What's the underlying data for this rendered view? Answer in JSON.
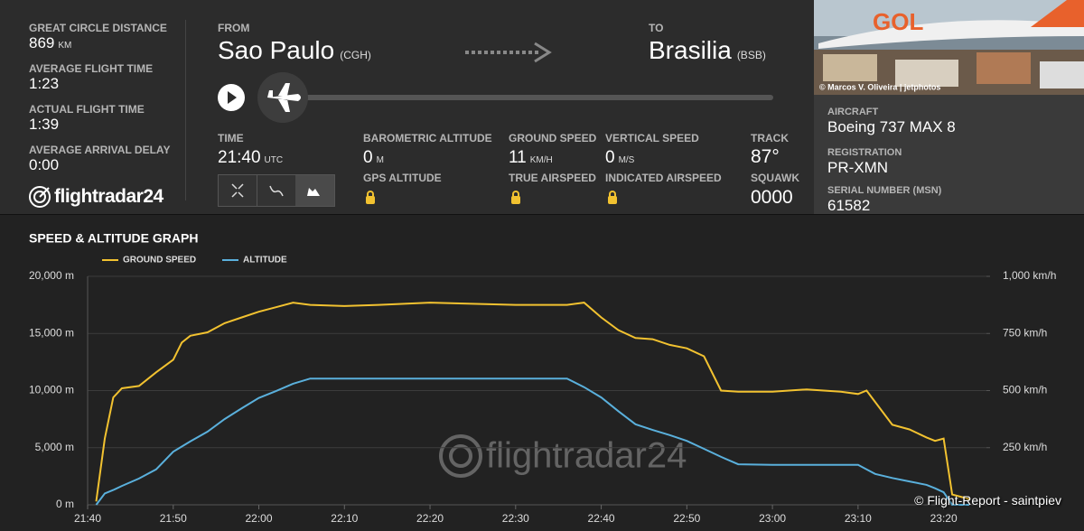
{
  "stats": [
    {
      "label": "GREAT CIRCLE DISTANCE",
      "value": "869",
      "unit": "KM"
    },
    {
      "label": "AVERAGE FLIGHT TIME",
      "value": "1:23"
    },
    {
      "label": "ACTUAL FLIGHT TIME",
      "value": "1:39"
    },
    {
      "label": "AVERAGE ARRIVAL DELAY",
      "value": "0:00"
    }
  ],
  "logo": "flightradar24",
  "route": {
    "from_label": "FROM",
    "from_city": "Sao Paulo",
    "from_code": "(CGH)",
    "to_label": "TO",
    "to_city": "Brasilia",
    "to_code": "(BSB)"
  },
  "flight_info": [
    {
      "label": "TIME",
      "value": "21:40",
      "unit": "UTC"
    },
    {
      "label": "BAROMETRIC ALTITUDE",
      "value": "0",
      "unit": "M"
    },
    {
      "label": "GROUND SPEED",
      "value": "11",
      "unit": "KM/H"
    },
    {
      "label": "VERTICAL SPEED",
      "value": "0",
      "unit": "M/S"
    },
    {
      "label": "TRACK",
      "value": "87°"
    }
  ],
  "locked_info": [
    "GPS ALTITUDE",
    "TRUE AIRSPEED",
    "INDICATED AIRSPEED"
  ],
  "squawk": {
    "label": "SQUAWK",
    "value": "0000"
  },
  "photo": {
    "livery": "GOL",
    "credit": "© Marcos V. Oliveira | jetphotos"
  },
  "aircraft": [
    {
      "label": "AIRCRAFT",
      "value": "Boeing 737 MAX 8"
    },
    {
      "label": "REGISTRATION",
      "value": "PR-XMN"
    },
    {
      "label": "SERIAL NUMBER (MSN)",
      "value": "61582"
    }
  ],
  "chart_data": {
    "type": "line",
    "title": "SPEED & ALTITUDE GRAPH",
    "watermark": "flightradar24",
    "x": [
      "21:41",
      "21:42",
      "21:43",
      "21:44",
      "21:46",
      "21:48",
      "21:50",
      "21:51",
      "21:52",
      "21:54",
      "21:56",
      "21:58",
      "22:00",
      "22:02",
      "22:04",
      "22:06",
      "22:10",
      "22:14",
      "22:20",
      "22:30",
      "22:36",
      "22:38",
      "22:40",
      "22:42",
      "22:44",
      "22:46",
      "22:48",
      "22:50",
      "22:52",
      "22:54",
      "22:56",
      "23:00",
      "23:04",
      "23:08",
      "23:10",
      "23:11",
      "23:12",
      "23:14",
      "23:16",
      "23:18",
      "23:19",
      "23:20",
      "23:21",
      "23:22",
      "23:23"
    ],
    "xlim": [
      "21:40",
      "23:25"
    ],
    "xticks": [
      "21:40",
      "21:50",
      "22:00",
      "22:10",
      "22:20",
      "22:30",
      "22:40",
      "22:50",
      "23:00",
      "23:10",
      "23:20"
    ],
    "series": [
      {
        "name": "GROUND SPEED",
        "color": "#f2c230",
        "axis": "y2",
        "values": [
          15,
          290,
          470,
          510,
          520,
          580,
          635,
          710,
          740,
          755,
          795,
          820,
          845,
          865,
          885,
          875,
          870,
          875,
          885,
          875,
          875,
          885,
          820,
          765,
          730,
          725,
          700,
          685,
          650,
          500,
          495,
          495,
          505,
          495,
          485,
          500,
          450,
          350,
          330,
          295,
          280,
          290,
          45,
          35,
          25
        ]
      },
      {
        "name": "ALTITUDE",
        "color": "#5ab0dc",
        "values": [
          0,
          1000,
          1300,
          1650,
          2300,
          3100,
          4650,
          5100,
          5550,
          6400,
          7500,
          8450,
          9350,
          9950,
          10600,
          11050,
          11050,
          11050,
          11050,
          11050,
          11050,
          10300,
          9400,
          8200,
          7050,
          6550,
          6100,
          5600,
          4900,
          4200,
          3550,
          3500,
          3500,
          3500,
          3500,
          3100,
          2700,
          2350,
          2050,
          1750,
          1450,
          1100,
          0,
          0,
          0
        ]
      }
    ],
    "ylim": [
      0,
      20000
    ],
    "yticks": [
      {
        "value": 0,
        "label": "0 m"
      },
      {
        "value": 5000,
        "label": "5,000 m"
      },
      {
        "value": 10000,
        "label": "10,000 m"
      },
      {
        "value": 15000,
        "label": "15,000 m"
      },
      {
        "value": 20000,
        "label": "20,000 m"
      }
    ],
    "y2lim": [
      0,
      1000
    ],
    "y2ticks": [
      {
        "value": 250,
        "label": "250 km/h"
      },
      {
        "value": 500,
        "label": "500 km/h"
      },
      {
        "value": 750,
        "label": "750 km/h"
      },
      {
        "value": 1000,
        "label": "1,000 km/h"
      }
    ],
    "grid": true
  },
  "copyright": "© Flight-Report - saintpiev"
}
